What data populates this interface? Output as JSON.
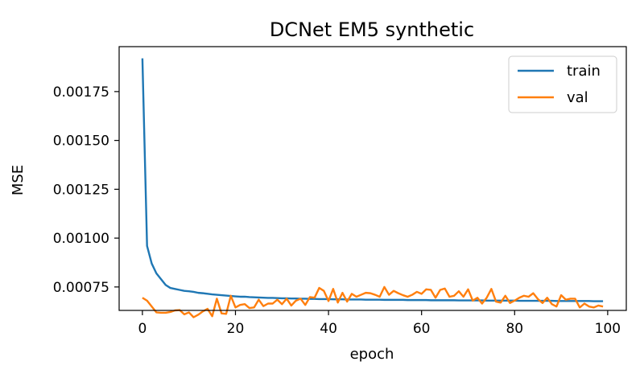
{
  "chart_data": {
    "type": "line",
    "title": "DCNet EM5 synthetic",
    "xlabel": "epoch",
    "ylabel": "MSE",
    "xlim": [
      -5,
      104
    ],
    "ylim": [
      0.00063,
      0.00198
    ],
    "xticks": [
      0,
      20,
      40,
      60,
      80,
      100
    ],
    "xtick_labels": [
      "0",
      "20",
      "40",
      "60",
      "80",
      "100"
    ],
    "yticks": [
      0.00075,
      0.001,
      0.00125,
      0.0015,
      0.00175
    ],
    "ytick_labels": [
      "0.00075",
      "0.00100",
      "0.00125",
      "0.00150",
      "0.00175"
    ],
    "grid": false,
    "legend": {
      "position": "top-right"
    },
    "series": [
      {
        "name": "train",
        "color": "#1f77b4",
        "x": [
          0,
          1,
          2,
          3,
          4,
          5,
          6,
          7,
          8,
          9,
          10,
          11,
          12,
          13,
          14,
          15,
          16,
          17,
          18,
          19,
          20,
          21,
          22,
          23,
          24,
          25,
          26,
          27,
          28,
          29,
          30,
          31,
          32,
          33,
          34,
          35,
          36,
          37,
          38,
          39,
          40,
          41,
          42,
          43,
          44,
          45,
          46,
          47,
          48,
          49,
          50,
          51,
          52,
          53,
          54,
          55,
          56,
          57,
          58,
          59,
          60,
          61,
          62,
          63,
          64,
          65,
          66,
          67,
          68,
          69,
          70,
          71,
          72,
          73,
          74,
          75,
          76,
          77,
          78,
          79,
          80,
          81,
          82,
          83,
          84,
          85,
          86,
          87,
          88,
          89,
          90,
          91,
          92,
          93,
          94,
          95,
          96,
          97,
          98,
          99
        ],
        "y": [
          0.00192,
          0.00096,
          0.00087,
          0.00082,
          0.00079,
          0.00076,
          0.000745,
          0.00074,
          0.000735,
          0.00073,
          0.000728,
          0.000725,
          0.00072,
          0.000718,
          0.000715,
          0.000712,
          0.00071,
          0.000708,
          0.000706,
          0.000704,
          0.000702,
          0.0007,
          0.0007,
          0.000698,
          0.000697,
          0.000696,
          0.000695,
          0.000694,
          0.000694,
          0.000693,
          0.000692,
          0.000692,
          0.000691,
          0.000691,
          0.00069,
          0.00069,
          0.000689,
          0.000689,
          0.000688,
          0.000688,
          0.000688,
          0.000687,
          0.000687,
          0.000687,
          0.000686,
          0.000686,
          0.000686,
          0.000686,
          0.000685,
          0.000685,
          0.000685,
          0.000685,
          0.000684,
          0.000684,
          0.000684,
          0.000684,
          0.000684,
          0.000683,
          0.000683,
          0.000683,
          0.000683,
          0.000683,
          0.000682,
          0.000682,
          0.000682,
          0.000682,
          0.000682,
          0.000682,
          0.000681,
          0.000681,
          0.000681,
          0.000681,
          0.000681,
          0.000681,
          0.00068,
          0.00068,
          0.00068,
          0.00068,
          0.00068,
          0.00068,
          0.00068,
          0.000679,
          0.000679,
          0.000679,
          0.000679,
          0.000679,
          0.000679,
          0.000679,
          0.000679,
          0.000678,
          0.000678,
          0.000678,
          0.000678,
          0.000678,
          0.000678,
          0.000678,
          0.000678,
          0.000677,
          0.000677,
          0.000677
        ]
      },
      {
        "name": "val",
        "color": "#ff7f0e",
        "x": [
          0,
          1,
          2,
          3,
          4,
          5,
          6,
          7,
          8,
          9,
          10,
          11,
          12,
          13,
          14,
          15,
          16,
          17,
          18,
          19,
          20,
          21,
          22,
          23,
          24,
          25,
          26,
          27,
          28,
          29,
          30,
          31,
          32,
          33,
          34,
          35,
          36,
          37,
          38,
          39,
          40,
          41,
          42,
          43,
          44,
          45,
          46,
          47,
          48,
          49,
          50,
          51,
          52,
          53,
          54,
          55,
          56,
          57,
          58,
          59,
          60,
          61,
          62,
          63,
          64,
          65,
          66,
          67,
          68,
          69,
          70,
          71,
          72,
          73,
          74,
          75,
          76,
          77,
          78,
          79,
          80,
          81,
          82,
          83,
          84,
          85,
          86,
          87,
          88,
          89,
          90,
          91,
          92,
          93,
          94,
          95,
          96,
          97,
          98,
          99
        ],
        "y": [
          0.000695,
          0.00068,
          0.00065,
          0.00062,
          0.000618,
          0.000618,
          0.000622,
          0.00063,
          0.000632,
          0.00061,
          0.00062,
          0.000595,
          0.000608,
          0.000625,
          0.000638,
          0.0006,
          0.00069,
          0.000615,
          0.000612,
          0.000705,
          0.000645,
          0.000658,
          0.000662,
          0.000642,
          0.000645,
          0.000685,
          0.000652,
          0.000665,
          0.000665,
          0.000685,
          0.000662,
          0.00069,
          0.000655,
          0.00068,
          0.00069,
          0.000658,
          0.000698,
          0.000695,
          0.000745,
          0.00073,
          0.000678,
          0.00074,
          0.00067,
          0.00072,
          0.000675,
          0.000715,
          0.0007,
          0.00071,
          0.00072,
          0.000718,
          0.00071,
          0.0007,
          0.00075,
          0.00071,
          0.00073,
          0.000718,
          0.000708,
          0.0007,
          0.00071,
          0.000725,
          0.000715,
          0.000738,
          0.000735,
          0.000695,
          0.000735,
          0.000742,
          0.0007,
          0.000705,
          0.000728,
          0.0007,
          0.000738,
          0.00068,
          0.000695,
          0.000665,
          0.000695,
          0.00074,
          0.000675,
          0.00067,
          0.000705,
          0.000668,
          0.00068,
          0.000695,
          0.000705,
          0.0007,
          0.000718,
          0.000688,
          0.000668,
          0.000695,
          0.000662,
          0.00065,
          0.000708,
          0.000685,
          0.00069,
          0.00069,
          0.000645,
          0.000665,
          0.00065,
          0.000645,
          0.000655,
          0.00065
        ]
      }
    ]
  }
}
